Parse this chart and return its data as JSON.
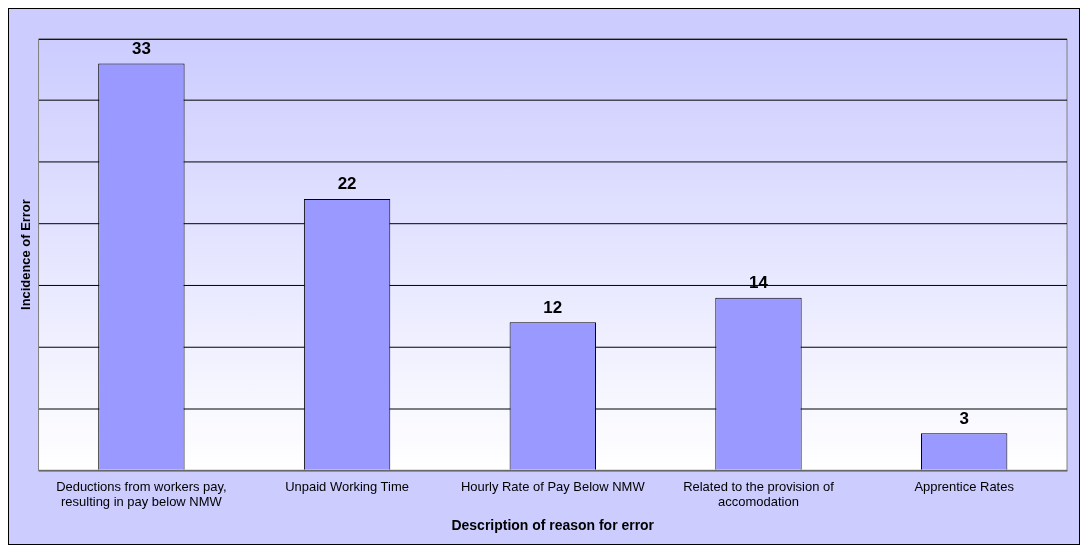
{
  "chart_data": {
    "type": "bar",
    "xlabel": "Description of reason for error",
    "ylabel": "Incidence of Error",
    "categories": [
      "Deductions from workers pay, resulting in pay below NMW",
      "Unpaid Working Time",
      "Hourly Rate of Pay Below NMW",
      "Related to the provision of accomodation",
      "Apprentice Rates"
    ],
    "values": [
      33,
      22,
      12,
      14,
      3
    ],
    "color": "#9999ff",
    "ylim": [
      0,
      35
    ],
    "yticks": [
      {
        "value": 0,
        "label": null
      },
      {
        "value": 5,
        "label": null
      },
      {
        "value": 10,
        "label": null
      },
      {
        "value": 15,
        "label": null
      },
      {
        "value": 20,
        "label": null
      },
      {
        "value": 25,
        "label": null
      },
      {
        "value": 30,
        "label": null
      },
      {
        "value": 35,
        "label": null
      }
    ],
    "tick_labels": "x",
    "grid": "y",
    "data_labels": true,
    "legend": false
  }
}
